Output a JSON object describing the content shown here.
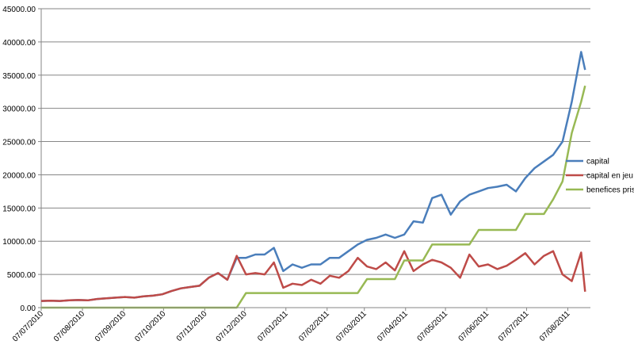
{
  "chart_data": {
    "type": "line",
    "x": [
      "07/07/2010",
      "14/07/2010",
      "21/07/2010",
      "28/07/2010",
      "04/08/2010",
      "11/08/2010",
      "18/08/2010",
      "25/08/2010",
      "01/09/2010",
      "08/09/2010",
      "15/09/2010",
      "22/09/2010",
      "29/09/2010",
      "06/10/2010",
      "13/10/2010",
      "20/10/2010",
      "27/10/2010",
      "03/11/2010",
      "10/11/2010",
      "17/11/2010",
      "24/11/2010",
      "01/12/2010",
      "08/12/2010",
      "15/12/2010",
      "22/12/2010",
      "29/12/2010",
      "05/01/2011",
      "12/01/2011",
      "19/01/2011",
      "26/01/2011",
      "02/02/2011",
      "09/02/2011",
      "16/02/2011",
      "23/02/2011",
      "02/03/2011",
      "09/03/2011",
      "16/03/2011",
      "23/03/2011",
      "30/03/2011",
      "06/04/2011",
      "13/04/2011",
      "20/04/2011",
      "27/04/2011",
      "04/05/2011",
      "11/05/2011",
      "18/05/2011",
      "25/05/2011",
      "01/06/2011",
      "08/06/2011",
      "15/06/2011",
      "22/06/2011",
      "29/06/2011",
      "06/07/2011",
      "13/07/2011",
      "20/07/2011",
      "27/07/2011",
      "03/08/2011",
      "10/08/2011",
      "17/08/2011",
      "20/08/2011"
    ],
    "series": [
      {
        "name": "capital",
        "color": "#4a7ebb",
        "values": [
          1000,
          1050,
          1000,
          1100,
          1150,
          1100,
          1300,
          1400,
          1500,
          1600,
          1500,
          1700,
          1800,
          2000,
          2500,
          2900,
          3100,
          3300,
          4500,
          5200,
          4200,
          7500,
          7500,
          8000,
          8000,
          9000,
          5500,
          6500,
          6000,
          6500,
          6500,
          7500,
          7500,
          8500,
          9500,
          10200,
          10500,
          11000,
          10500,
          11000,
          13000,
          12800,
          16500,
          17000,
          14000,
          16000,
          17000,
          17500,
          18000,
          18200,
          18500,
          17500,
          19500,
          21000,
          22000,
          23000,
          25000,
          31000,
          38500,
          35800
        ]
      },
      {
        "name": "capital en jeu",
        "color": "#be4b48",
        "values": [
          1000,
          1050,
          1000,
          1100,
          1150,
          1100,
          1300,
          1400,
          1500,
          1600,
          1500,
          1700,
          1800,
          2000,
          2500,
          2900,
          3100,
          3300,
          4500,
          5200,
          4200,
          7800,
          5000,
          5200,
          5000,
          6800,
          3000,
          3600,
          3400,
          4200,
          3600,
          4800,
          4500,
          5500,
          7500,
          6200,
          5800,
          6800,
          5600,
          8500,
          5500,
          6500,
          7200,
          6800,
          6000,
          4500,
          8000,
          6200,
          6500,
          5800,
          6300,
          7200,
          8200,
          6500,
          7800,
          8500,
          5000,
          4000,
          8300,
          2400
        ]
      },
      {
        "name": "benefices pris",
        "color": "#98b954",
        "values": [
          0,
          0,
          0,
          0,
          0,
          0,
          0,
          0,
          0,
          0,
          0,
          0,
          0,
          0,
          0,
          0,
          0,
          0,
          0,
          0,
          0,
          0,
          2200,
          2200,
          2200,
          2200,
          2200,
          2200,
          2200,
          2200,
          2200,
          2200,
          2200,
          2200,
          2200,
          4300,
          4300,
          4300,
          4300,
          7100,
          7100,
          7100,
          9500,
          9500,
          9500,
          9500,
          9500,
          11700,
          11700,
          11700,
          11700,
          11700,
          14100,
          14100,
          14100,
          16300,
          19000,
          26300,
          31000,
          33400
        ]
      }
    ],
    "xlim": [
      "07/07/2010",
      "24/08/2011"
    ],
    "xticks": [
      "07/07/2010",
      "07/08/2010",
      "07/09/2010",
      "07/10/2010",
      "07/11/2010",
      "07/12/2010",
      "07/01/2011",
      "07/02/2011",
      "07/03/2011",
      "07/04/2011",
      "07/05/2011",
      "07/06/2011",
      "07/07/2011",
      "07/08/2011"
    ],
    "ylim": [
      0,
      45000
    ],
    "yticks": [
      {
        "value": 0,
        "label": "0.00"
      },
      {
        "value": 5000,
        "label": "5000.00"
      },
      {
        "value": 10000,
        "label": "10000.00"
      },
      {
        "value": 15000,
        "label": "15000.00"
      },
      {
        "value": 20000,
        "label": "20000.00"
      },
      {
        "value": 25000,
        "label": "25000.00"
      },
      {
        "value": 30000,
        "label": "30000.00"
      },
      {
        "value": 35000,
        "label": "35000.00"
      },
      {
        "value": 40000,
        "label": "40000.00"
      },
      {
        "value": 45000,
        "label": "45000.00"
      }
    ],
    "grid": true,
    "legend": "right"
  }
}
